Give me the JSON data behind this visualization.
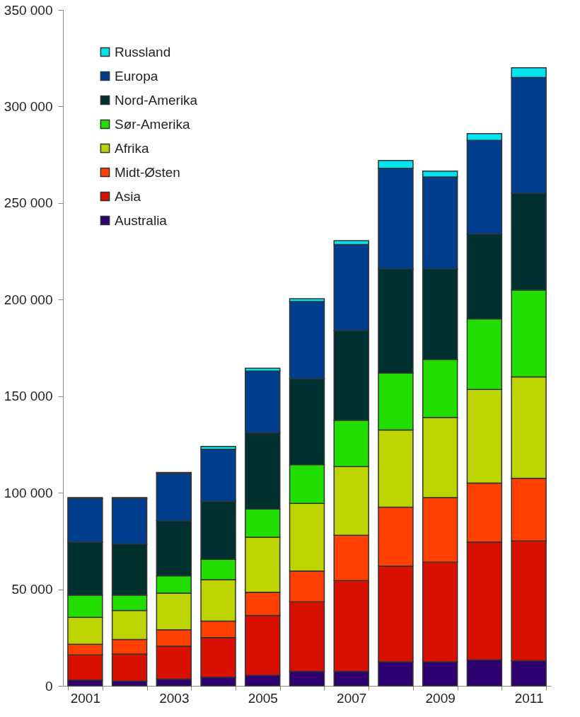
{
  "chart_data": {
    "type": "bar",
    "stacked": true,
    "categories": [
      "2001",
      null,
      "2003",
      null,
      "2005",
      null,
      "2007",
      null,
      "2009",
      null,
      "2011"
    ],
    "series": [
      {
        "name": "Australia",
        "color": "#2e0070",
        "values": [
          3000,
          2500,
          3500,
          4500,
          5500,
          7500,
          7500,
          12500,
          12500,
          13500,
          13000
        ]
      },
      {
        "name": "Asia",
        "color": "#d91000",
        "values": [
          13000,
          14000,
          17000,
          20500,
          31000,
          36000,
          47000,
          49500,
          51500,
          61000,
          62000
        ]
      },
      {
        "name": "Midt-Østen",
        "color": "#ff4000",
        "values": [
          5500,
          7500,
          8500,
          8500,
          12000,
          16000,
          23500,
          30500,
          33500,
          30500,
          32500
        ]
      },
      {
        "name": "Afrika",
        "color": "#bdd400",
        "values": [
          14000,
          15000,
          19000,
          21500,
          28500,
          35000,
          35500,
          40000,
          41500,
          48500,
          52500
        ]
      },
      {
        "name": "Sør-Amerika",
        "color": "#22dd00",
        "values": [
          11500,
          8000,
          9000,
          10500,
          14500,
          20000,
          24000,
          29500,
          30000,
          36500,
          45000
        ]
      },
      {
        "name": "Nord-Amerika",
        "color": "#003030",
        "values": [
          27500,
          26500,
          28500,
          30000,
          39500,
          44500,
          46500,
          54000,
          47000,
          44000,
          50000
        ]
      },
      {
        "name": "Europa",
        "color": "#003f8f",
        "values": [
          22500,
          23500,
          24500,
          27000,
          32000,
          40000,
          44500,
          52000,
          47500,
          48500,
          60000
        ]
      },
      {
        "name": "Russland",
        "color": "#00e5f0",
        "values": [
          500,
          500,
          500,
          1500,
          1500,
          1500,
          2000,
          4000,
          3000,
          3500,
          5000
        ]
      }
    ],
    "ylim": [
      0,
      350000
    ],
    "yticks": [
      {
        "value": 0,
        "label": "0"
      },
      {
        "value": 50000,
        "label": "50 000"
      },
      {
        "value": 100000,
        "label": "100 000"
      },
      {
        "value": 150000,
        "label": "150 000"
      },
      {
        "value": 200000,
        "label": "200 000"
      },
      {
        "value": 250000,
        "label": "250 000"
      },
      {
        "value": 300000,
        "label": "300 000"
      },
      {
        "value": 350000,
        "label": "350 000"
      }
    ],
    "legend": "top left",
    "grid": false
  }
}
